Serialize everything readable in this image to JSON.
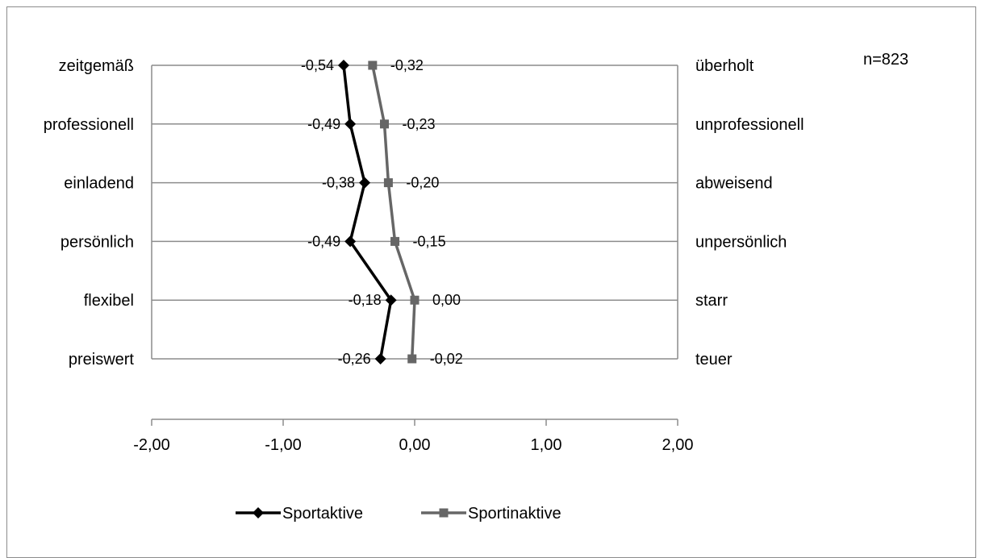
{
  "chart_data": {
    "type": "line",
    "orientation": "horizontal-profile",
    "categories_left": [
      "zeitgemäß",
      "professionell",
      "einladend",
      "persönlich",
      "flexibel",
      "preiswert"
    ],
    "categories_right": [
      "überholt",
      "unprofessionell",
      "abweisend",
      "unpersönlich",
      "starr",
      "teuer"
    ],
    "series": [
      {
        "name": "Sportaktive",
        "color": "#000000",
        "marker": "diamond",
        "values": [
          -0.54,
          -0.49,
          -0.38,
          -0.49,
          -0.18,
          -0.26
        ],
        "labels": [
          "-0,54",
          "-0,49",
          "-0,38",
          "-0,49",
          "-0,18",
          "-0,26"
        ]
      },
      {
        "name": "Sportinaktive",
        "color": "#666666",
        "marker": "square",
        "values": [
          -0.32,
          -0.23,
          -0.2,
          -0.15,
          0.0,
          -0.02
        ],
        "labels": [
          "-0,32",
          "-0,23",
          "-0,20",
          "-0,15",
          "0,00",
          "-0,02"
        ]
      }
    ],
    "x_ticks": [
      "-2,00",
      "-1,00",
      "0,00",
      "1,00",
      "2,00"
    ],
    "xlim": [
      -2,
      2
    ],
    "grid": true,
    "legend_position": "bottom",
    "annotation": "n=823"
  }
}
